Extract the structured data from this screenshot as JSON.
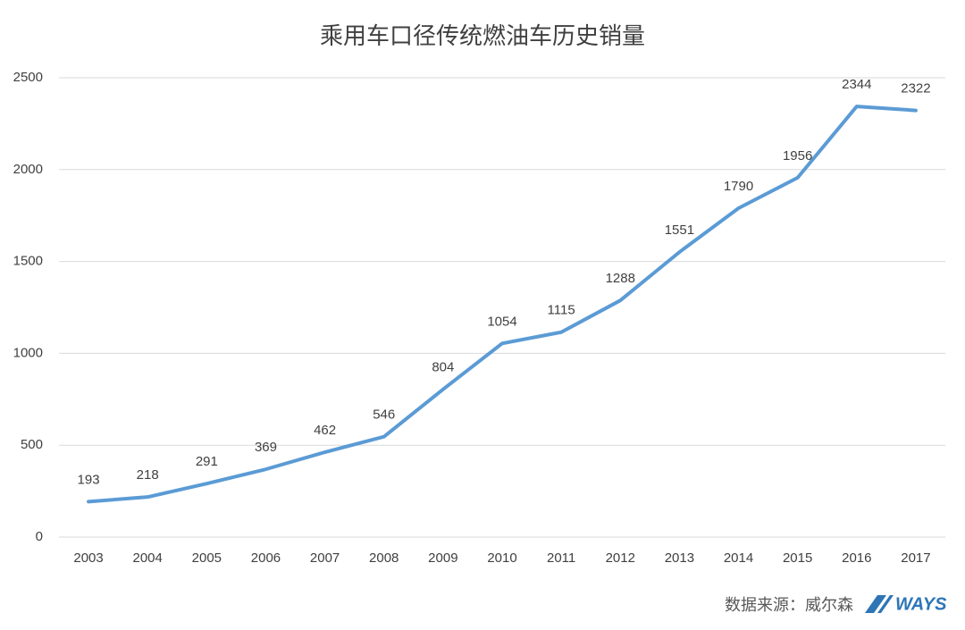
{
  "chart_data": {
    "type": "line",
    "title": "乘用车口径传统燃油车历史销量",
    "categories": [
      "2003",
      "2004",
      "2005",
      "2006",
      "2007",
      "2008",
      "2009",
      "2010",
      "2011",
      "2012",
      "2013",
      "2014",
      "2015",
      "2016",
      "2017"
    ],
    "values": [
      193,
      218,
      291,
      369,
      462,
      546,
      804,
      1054,
      1115,
      1288,
      1551,
      1790,
      1956,
      2344,
      2322
    ],
    "color": "#5b9bd5",
    "ylim": [
      0,
      2500
    ],
    "yticks": [
      0,
      500,
      1000,
      1500,
      2000,
      2500
    ],
    "grid": true,
    "source": "数据来源：威尔森",
    "logo": "WAYS"
  }
}
